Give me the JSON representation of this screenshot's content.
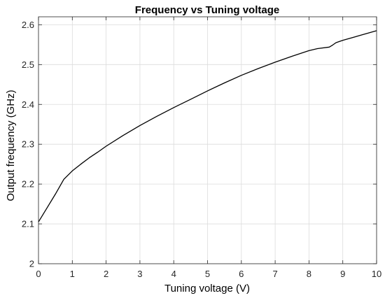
{
  "chart_data": {
    "type": "line",
    "title": "Frequency vs Tuning voltage",
    "xlabel": "Tuning voltage (V)",
    "ylabel": "Output frequency (GHz)",
    "xlim": [
      0,
      10
    ],
    "ylim": [
      2,
      2.62
    ],
    "xticks": [
      0,
      1,
      2,
      3,
      4,
      5,
      6,
      7,
      8,
      9,
      10
    ],
    "yticks": [
      2,
      2.1,
      2.2,
      2.3,
      2.4,
      2.5,
      2.6
    ],
    "xtick_labels": [
      "0",
      "1",
      "2",
      "3",
      "4",
      "5",
      "6",
      "7",
      "8",
      "9",
      "10"
    ],
    "ytick_labels": [
      "2",
      "2.1",
      "2.2",
      "2.3",
      "2.4",
      "2.5",
      "2.6"
    ],
    "grid": true,
    "series": [
      {
        "color": "#000000",
        "x": [
          0,
          0.25,
          0.5,
          0.75,
          1.0,
          1.25,
          1.5,
          1.75,
          2.0,
          2.5,
          3.0,
          3.5,
          4.0,
          4.5,
          5.0,
          5.5,
          6.0,
          6.5,
          7.0,
          7.5,
          8.0,
          8.25,
          8.6,
          8.7,
          8.8,
          9.0,
          9.5,
          10.0
        ],
        "y": [
          2.105,
          2.14,
          2.175,
          2.212,
          2.233,
          2.25,
          2.266,
          2.28,
          2.295,
          2.322,
          2.347,
          2.37,
          2.392,
          2.413,
          2.434,
          2.454,
          2.473,
          2.49,
          2.506,
          2.521,
          2.535,
          2.54,
          2.544,
          2.549,
          2.555,
          2.561,
          2.573,
          2.585
        ]
      }
    ]
  }
}
